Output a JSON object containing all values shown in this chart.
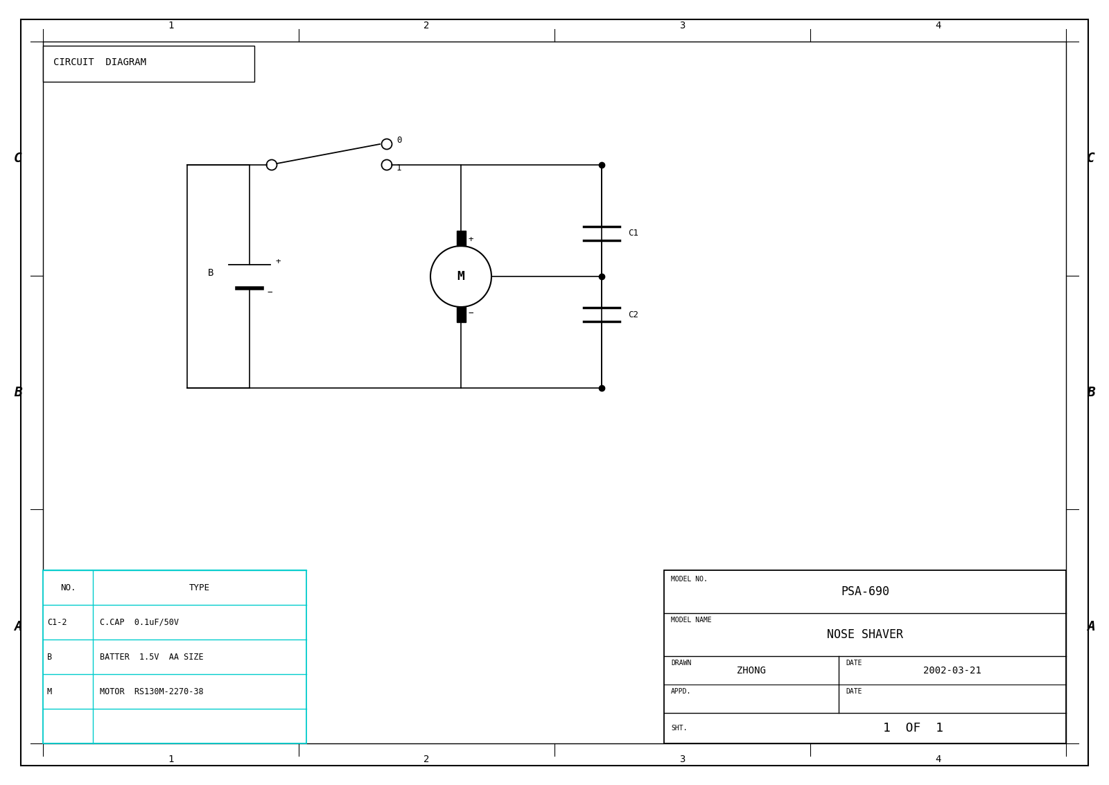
{
  "bg_color": "#ffffff",
  "title": "CIRCUIT  DIAGRAM",
  "grid_cols": [
    "1",
    "2",
    "3",
    "4"
  ],
  "grid_rows_labels": [
    "C",
    "B",
    "A"
  ],
  "bom_rows": [
    [
      "C1-2",
      "C.CAP  0.1uF/50V"
    ],
    [
      "B",
      "BATTER  1.5V  AA SIZE"
    ],
    [
      "M",
      "MOTOR  RS130M-2270-38"
    ]
  ],
  "model_no_label": "MODEL NO.",
  "model_no": "PSA-690",
  "model_name_label": "MODEL NAME",
  "model_name": "NOSE SHAVER",
  "drawn_label": "DRAWN",
  "drawn": "ZHONG",
  "date_label": "DATE",
  "date_val": "2002-03-21",
  "appd_label": "APPD.",
  "date2_label": "DATE",
  "sht_label": "SHT.",
  "sht_val": "1  OF  1"
}
